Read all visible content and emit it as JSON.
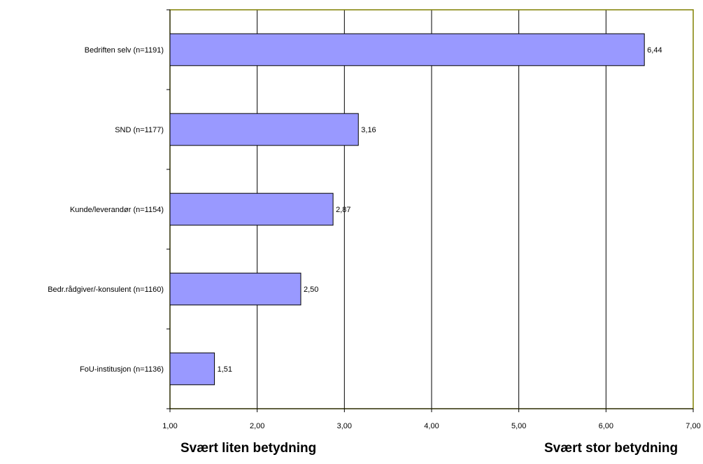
{
  "chart_data": {
    "type": "bar",
    "orientation": "horizontal",
    "categories": [
      "Bedriften selv (n=1191)",
      "SND (n=1177)",
      "Kunde/leverandør (n=1154)",
      "Bedr.rådgiver/-konsulent (n=1160)",
      "FoU-institusjon (n=1136)"
    ],
    "values": [
      6.44,
      3.16,
      2.87,
      2.5,
      1.51
    ],
    "value_labels": [
      "6,44",
      "3,16",
      "2,87",
      "2,50",
      "1,51"
    ],
    "xlim": [
      1,
      7
    ],
    "x_ticks": [
      1,
      2,
      3,
      4,
      5,
      6,
      7
    ],
    "x_tick_labels": [
      "1,00",
      "2,00",
      "3,00",
      "4,00",
      "5,00",
      "6,00",
      "7,00"
    ],
    "grid": true,
    "colors": {
      "bar_fill": "#9999ff",
      "bar_stroke": "#000000",
      "plot_border": "#808000",
      "gridline": "#000000"
    }
  },
  "labels": {
    "left_extreme": "Svært liten betydning",
    "right_extreme": "Svært stor betydning"
  }
}
